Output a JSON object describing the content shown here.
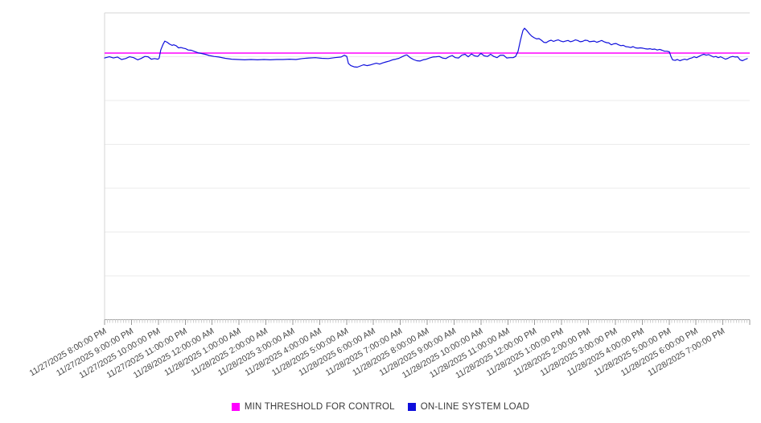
{
  "chart_data": {
    "type": "line",
    "title": "",
    "xlabel": "",
    "ylabel": "",
    "legend_position": "bottom",
    "grid": true,
    "grid_divisions_y": 7,
    "y_axis_labels_visible": false,
    "ylim": [
      0,
      100
    ],
    "x_range_hours": [
      0,
      24
    ],
    "minor_ticks_per_hour": 10,
    "x_tick_labels": [
      "11/27/2025 8:00:00 PM",
      "11/27/2025 9:00:00 PM",
      "11/27/2025 10:00:00 PM",
      "11/27/2025 11:00:00 PM",
      "11/28/2025 12:00:00 AM",
      "11/28/2025 1:00:00 AM",
      "11/28/2025 2:00:00 AM",
      "11/28/2025 3:00:00 AM",
      "11/28/2025 4:00:00 AM",
      "11/28/2025 5:00:00 AM",
      "11/28/2025 6:00:00 AM",
      "11/28/2025 7:00:00 AM",
      "11/28/2025 8:00:00 AM",
      "11/28/2025 9:00:00 AM",
      "11/28/2025 10:00:00 AM",
      "11/28/2025 11:00:00 AM",
      "11/28/2025 12:00:00 PM",
      "11/28/2025 1:00:00 PM",
      "11/28/2025 2:00:00 PM",
      "11/28/2025 3:00:00 PM",
      "11/28/2025 4:00:00 PM",
      "11/28/2025 5:00:00 PM",
      "11/28/2025 6:00:00 PM",
      "11/28/2025 7:00:00 PM"
    ],
    "series": [
      {
        "name": "MIN THRESHOLD FOR CONTROL",
        "kind": "threshold",
        "color": "#ff00ff",
        "value": 86.9
      },
      {
        "name": "ON-LINE SYSTEM LOAD",
        "kind": "line",
        "color": "#0f0fdc",
        "points": [
          [
            0,
            85.3
          ],
          [
            0.18,
            85.7
          ],
          [
            0.33,
            85.3
          ],
          [
            0.48,
            85.6
          ],
          [
            0.63,
            84.8
          ],
          [
            0.78,
            85.1
          ],
          [
            0.93,
            85.7
          ],
          [
            1.08,
            85.4
          ],
          [
            1.23,
            84.7
          ],
          [
            1.35,
            85.1
          ],
          [
            1.5,
            85.8
          ],
          [
            1.62,
            85.7
          ],
          [
            1.74,
            84.9
          ],
          [
            1.86,
            85.1
          ],
          [
            1.98,
            84.9
          ],
          [
            2.03,
            85.2
          ],
          [
            2.09,
            87.9
          ],
          [
            2.18,
            89.8
          ],
          [
            2.24,
            90.8
          ],
          [
            2.33,
            90.4
          ],
          [
            2.42,
            89.8
          ],
          [
            2.51,
            89.4
          ],
          [
            2.57,
            89.6
          ],
          [
            2.66,
            89.3
          ],
          [
            2.75,
            88.6
          ],
          [
            2.84,
            88.7
          ],
          [
            2.93,
            88.5
          ],
          [
            3.02,
            88.3
          ],
          [
            3.11,
            87.9
          ],
          [
            3.23,
            87.8
          ],
          [
            3.35,
            87.4
          ],
          [
            3.47,
            87.0
          ],
          [
            3.59,
            86.8
          ],
          [
            3.74,
            86.5
          ],
          [
            3.89,
            86.1
          ],
          [
            4.07,
            85.8
          ],
          [
            4.25,
            85.6
          ],
          [
            4.49,
            85.2
          ],
          [
            4.73,
            84.9
          ],
          [
            4.97,
            84.8
          ],
          [
            5.21,
            84.7
          ],
          [
            5.45,
            84.8
          ],
          [
            5.69,
            84.7
          ],
          [
            5.93,
            84.8
          ],
          [
            6.16,
            84.7
          ],
          [
            6.4,
            84.8
          ],
          [
            6.64,
            84.8
          ],
          [
            6.88,
            84.9
          ],
          [
            7.12,
            84.8
          ],
          [
            7.36,
            85.1
          ],
          [
            7.6,
            85.3
          ],
          [
            7.84,
            85.4
          ],
          [
            8.08,
            85.2
          ],
          [
            8.32,
            85.1
          ],
          [
            8.56,
            85.4
          ],
          [
            8.8,
            85.6
          ],
          [
            8.92,
            86.2
          ],
          [
            9.01,
            85.8
          ],
          [
            9.07,
            83.5
          ],
          [
            9.16,
            82.8
          ],
          [
            9.28,
            82.4
          ],
          [
            9.4,
            82.3
          ],
          [
            9.52,
            82.7
          ],
          [
            9.64,
            83.1
          ],
          [
            9.76,
            82.8
          ],
          [
            9.87,
            83.0
          ],
          [
            9.99,
            83.3
          ],
          [
            10.11,
            83.6
          ],
          [
            10.23,
            83.3
          ],
          [
            10.35,
            83.7
          ],
          [
            10.47,
            84.0
          ],
          [
            10.59,
            84.3
          ],
          [
            10.71,
            84.7
          ],
          [
            10.83,
            84.9
          ],
          [
            10.95,
            85.2
          ],
          [
            11.07,
            85.7
          ],
          [
            11.19,
            86.2
          ],
          [
            11.25,
            86.3
          ],
          [
            11.37,
            85.4
          ],
          [
            11.49,
            84.8
          ],
          [
            11.61,
            84.4
          ],
          [
            11.73,
            84.3
          ],
          [
            11.85,
            84.7
          ],
          [
            11.97,
            84.9
          ],
          [
            12.09,
            85.3
          ],
          [
            12.21,
            85.6
          ],
          [
            12.33,
            85.7
          ],
          [
            12.45,
            85.8
          ],
          [
            12.57,
            85.3
          ],
          [
            12.69,
            85.1
          ],
          [
            12.81,
            85.7
          ],
          [
            12.93,
            86.1
          ],
          [
            13.05,
            85.4
          ],
          [
            13.17,
            85.3
          ],
          [
            13.29,
            86.2
          ],
          [
            13.41,
            86.5
          ],
          [
            13.53,
            85.7
          ],
          [
            13.65,
            86.6
          ],
          [
            13.76,
            86.0
          ],
          [
            13.88,
            85.8
          ],
          [
            14.0,
            86.8
          ],
          [
            14.12,
            86.0
          ],
          [
            14.24,
            85.8
          ],
          [
            14.36,
            86.5
          ],
          [
            14.48,
            85.8
          ],
          [
            14.6,
            85.4
          ],
          [
            14.72,
            86.2
          ],
          [
            14.84,
            86.2
          ],
          [
            14.96,
            85.3
          ],
          [
            15.08,
            85.4
          ],
          [
            15.2,
            85.4
          ],
          [
            15.29,
            85.8
          ],
          [
            15.38,
            87.4
          ],
          [
            15.47,
            91.1
          ],
          [
            15.56,
            94.2
          ],
          [
            15.62,
            95.0
          ],
          [
            15.71,
            94.2
          ],
          [
            15.8,
            93.2
          ],
          [
            15.89,
            92.4
          ],
          [
            15.98,
            91.9
          ],
          [
            16.07,
            91.5
          ],
          [
            16.16,
            91.6
          ],
          [
            16.25,
            91.1
          ],
          [
            16.34,
            90.4
          ],
          [
            16.43,
            90.3
          ],
          [
            16.52,
            90.8
          ],
          [
            16.61,
            91.1
          ],
          [
            16.7,
            90.7
          ],
          [
            16.79,
            91.0
          ],
          [
            16.88,
            91.2
          ],
          [
            16.97,
            90.8
          ],
          [
            17.06,
            90.6
          ],
          [
            17.15,
            90.8
          ],
          [
            17.24,
            91.0
          ],
          [
            17.33,
            90.6
          ],
          [
            17.42,
            90.8
          ],
          [
            17.51,
            91.2
          ],
          [
            17.6,
            91.0
          ],
          [
            17.69,
            90.6
          ],
          [
            17.78,
            90.7
          ],
          [
            17.87,
            91.1
          ],
          [
            17.96,
            91.0
          ],
          [
            18.04,
            90.6
          ],
          [
            18.13,
            90.7
          ],
          [
            18.22,
            90.8
          ],
          [
            18.31,
            90.4
          ],
          [
            18.4,
            90.7
          ],
          [
            18.49,
            91.0
          ],
          [
            18.58,
            90.6
          ],
          [
            18.67,
            90.3
          ],
          [
            18.76,
            90.2
          ],
          [
            18.85,
            89.6
          ],
          [
            18.94,
            89.9
          ],
          [
            19.03,
            90.0
          ],
          [
            19.12,
            89.6
          ],
          [
            19.21,
            89.3
          ],
          [
            19.3,
            89.4
          ],
          [
            19.39,
            89.0
          ],
          [
            19.48,
            88.9
          ],
          [
            19.57,
            88.7
          ],
          [
            19.66,
            89.0
          ],
          [
            19.75,
            88.6
          ],
          [
            19.84,
            88.5
          ],
          [
            19.93,
            88.6
          ],
          [
            20.02,
            88.5
          ],
          [
            20.11,
            88.3
          ],
          [
            20.2,
            88.2
          ],
          [
            20.29,
            88.3
          ],
          [
            20.38,
            88.1
          ],
          [
            20.47,
            88.2
          ],
          [
            20.56,
            87.9
          ],
          [
            20.65,
            88.1
          ],
          [
            20.74,
            87.8
          ],
          [
            20.83,
            87.5
          ],
          [
            20.92,
            87.5
          ],
          [
            21.01,
            87.3
          ],
          [
            21.07,
            85.8
          ],
          [
            21.13,
            84.7
          ],
          [
            21.22,
            84.5
          ],
          [
            21.31,
            84.8
          ],
          [
            21.4,
            84.4
          ],
          [
            21.49,
            84.7
          ],
          [
            21.58,
            84.9
          ],
          [
            21.67,
            84.7
          ],
          [
            21.76,
            85.1
          ],
          [
            21.84,
            85.3
          ],
          [
            21.93,
            85.7
          ],
          [
            22.02,
            85.4
          ],
          [
            22.11,
            85.8
          ],
          [
            22.2,
            86.2
          ],
          [
            22.29,
            86.5
          ],
          [
            22.38,
            86.2
          ],
          [
            22.47,
            86.4
          ],
          [
            22.56,
            86.0
          ],
          [
            22.65,
            85.6
          ],
          [
            22.74,
            85.8
          ],
          [
            22.83,
            85.4
          ],
          [
            22.92,
            85.7
          ],
          [
            23.01,
            85.3
          ],
          [
            23.1,
            84.9
          ],
          [
            23.19,
            85.2
          ],
          [
            23.28,
            85.6
          ],
          [
            23.37,
            85.8
          ],
          [
            23.46,
            85.6
          ],
          [
            23.55,
            85.7
          ],
          [
            23.64,
            84.7
          ],
          [
            23.73,
            84.4
          ],
          [
            23.82,
            84.8
          ],
          [
            23.91,
            85.1
          ]
        ]
      }
    ],
    "colors": {
      "grid": "#ebebeb",
      "plot_border": "#d6d6d6",
      "axis_baseline": "#a8a8a8",
      "minor_tick": "#d0d0d0",
      "hour_tick": "#999999",
      "tick_label": "#444444"
    }
  }
}
